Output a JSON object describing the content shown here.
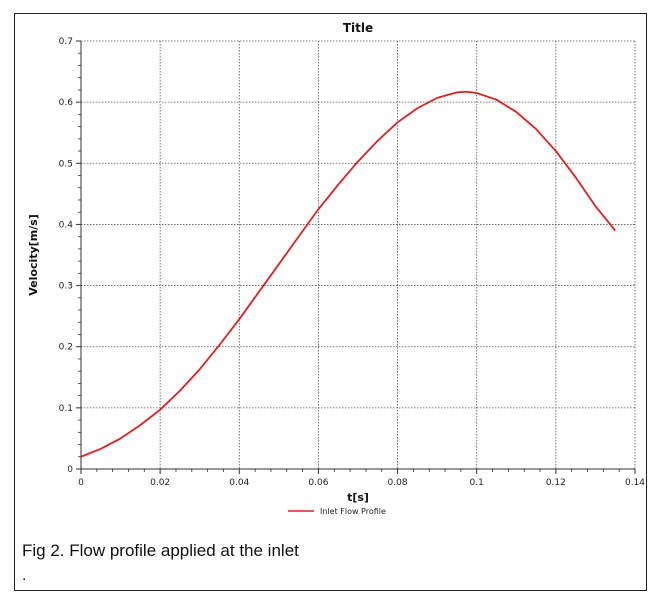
{
  "figure": {
    "caption": "Fig 2. Flow profile applied at the inlet",
    "trailing_text": "."
  },
  "colors": {
    "series": "#e02020",
    "grid": "#555555",
    "axis": "#333333"
  },
  "chart_data": {
    "type": "line",
    "title": "Title",
    "xlabel": "t[s]",
    "ylabel": "Velocity[m/s]",
    "xlim": [
      0,
      0.14
    ],
    "ylim": [
      0,
      0.7
    ],
    "xticks": [
      0,
      0.02,
      0.04,
      0.06,
      0.08,
      0.1,
      0.12,
      0.14
    ],
    "yticks": [
      0,
      0.1,
      0.2,
      0.3,
      0.4,
      0.5,
      0.6,
      0.7
    ],
    "xtick_labels": [
      "0",
      "0.02",
      "0.04",
      "0.06",
      "0.08",
      "0.1",
      "0.12",
      "0.14"
    ],
    "ytick_labels": [
      "0",
      "0.1",
      "0.2",
      "0.3",
      "0.4",
      "0.5",
      "0.6",
      "0.7"
    ],
    "grid": true,
    "legend_position": "bottom-center",
    "series": [
      {
        "name": "Inlet Flow Profile",
        "x": [
          0.0,
          0.005,
          0.01,
          0.015,
          0.02,
          0.025,
          0.03,
          0.035,
          0.04,
          0.045,
          0.05,
          0.055,
          0.06,
          0.065,
          0.07,
          0.075,
          0.08,
          0.085,
          0.09,
          0.095,
          0.0975,
          0.1,
          0.105,
          0.11,
          0.115,
          0.12,
          0.125,
          0.13,
          0.135
        ],
        "y": [
          0.02,
          0.033,
          0.05,
          0.072,
          0.097,
          0.128,
          0.163,
          0.203,
          0.245,
          0.29,
          0.335,
          0.38,
          0.425,
          0.465,
          0.503,
          0.537,
          0.567,
          0.59,
          0.607,
          0.616,
          0.617,
          0.615,
          0.604,
          0.584,
          0.556,
          0.52,
          0.477,
          0.43,
          0.39
        ]
      }
    ]
  }
}
